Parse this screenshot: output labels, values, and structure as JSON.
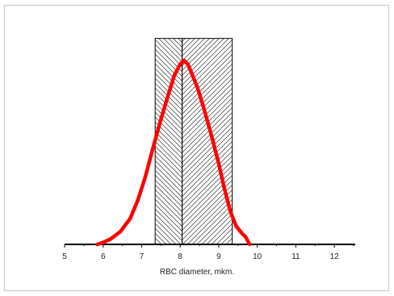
{
  "chart_data": {
    "type": "line",
    "xlabel": "RBC diameter, mkm.",
    "ylabel": "",
    "title": "",
    "grid": false,
    "legend": "none",
    "xlim": [
      5,
      12.5
    ],
    "ylim": [
      0,
      1
    ],
    "x_ticks": [
      5,
      6,
      7,
      8,
      9,
      10,
      11,
      12
    ],
    "tick_labels": [
      "5",
      "6",
      "7",
      "8",
      "9",
      "10",
      "11",
      "12"
    ],
    "series": [
      {
        "color": "#ff0000",
        "x": [
          5.85,
          6.0,
          6.2,
          6.45,
          6.7,
          6.9,
          7.1,
          7.3,
          7.5,
          7.7,
          7.85,
          8.0,
          8.1,
          8.2,
          8.3,
          8.45,
          8.6,
          8.8,
          9.0,
          9.15,
          9.3,
          9.45,
          9.6,
          9.7,
          9.75,
          9.8
        ],
        "y": [
          0.0,
          0.01,
          0.03,
          0.07,
          0.14,
          0.24,
          0.37,
          0.53,
          0.68,
          0.82,
          0.92,
          0.98,
          1.0,
          0.98,
          0.93,
          0.85,
          0.75,
          0.6,
          0.44,
          0.3,
          0.18,
          0.1,
          0.06,
          0.04,
          0.02,
          0.0
        ]
      }
    ],
    "ranges": [
      {
        "x_start": 7.35,
        "x_end": 8.05,
        "y_top": 1.12,
        "hatch": "backslash"
      },
      {
        "x_start": 8.05,
        "x_end": 9.35,
        "y_top": 1.12,
        "hatch": "slash"
      }
    ],
    "colors": {
      "curve": "#ff0000",
      "axis": "#000000",
      "hatch": "#333333",
      "frame": "#c8c8c8"
    }
  }
}
